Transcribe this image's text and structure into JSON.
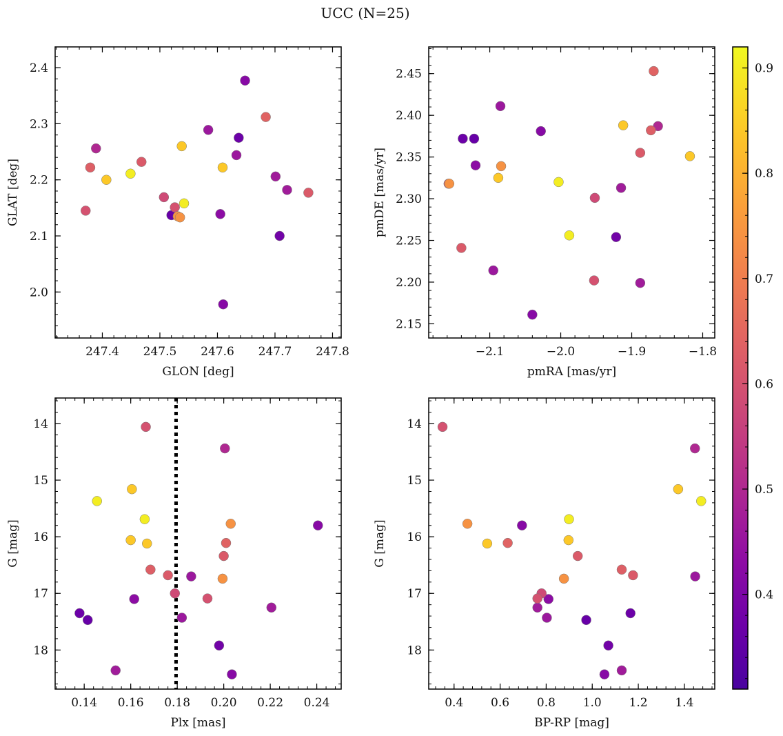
{
  "title": "UCC (N=25)",
  "chart_data": {
    "type": "scatter",
    "colorbar": {
      "colormap": "plasma",
      "range": [
        0.31,
        0.92
      ],
      "ticks": [
        "0.4",
        "0.5",
        "0.6",
        "0.7",
        "0.8",
        "0.9"
      ],
      "tick_values": [
        0.4,
        0.5,
        0.6,
        0.7,
        0.8,
        0.9
      ]
    },
    "stars": [
      {
        "glon": 247.371,
        "glat": 2.145,
        "pmra": -2.158,
        "pmde": 2.318,
        "plx": 0.1665,
        "g": 14.06,
        "bprp": 0.35,
        "prob": 0.6
      },
      {
        "glon": 247.379,
        "glat": 2.222,
        "pmra": -1.873,
        "pmde": 2.382,
        "plx": 0.1685,
        "g": 16.58,
        "bprp": 1.128,
        "prob": 0.63
      },
      {
        "glon": 247.389,
        "glat": 2.256,
        "pmra": -1.863,
        "pmde": 2.387,
        "plx": 0.2005,
        "g": 14.44,
        "bprp": 1.446,
        "prob": 0.5
      },
      {
        "glon": 247.407,
        "glat": 2.2,
        "pmra": -2.088,
        "pmde": 2.325,
        "plx": 0.1605,
        "g": 15.16,
        "bprp": 1.373,
        "prob": 0.84
      },
      {
        "glon": 247.449,
        "glat": 2.211,
        "pmra": -2.003,
        "pmde": 2.32,
        "plx": 0.1455,
        "g": 15.37,
        "bprp": 1.473,
        "prob": 0.9
      },
      {
        "glon": 247.468,
        "glat": 2.232,
        "pmra": -1.888,
        "pmde": 2.355,
        "plx": 0.176,
        "g": 16.68,
        "bprp": 1.177,
        "prob": 0.62
      },
      {
        "glon": 247.507,
        "glat": 2.169,
        "pmra": -1.952,
        "pmde": 2.301,
        "plx": 0.179,
        "g": 17.0,
        "bprp": 0.78,
        "prob": 0.58
      },
      {
        "glon": 247.52,
        "glat": 2.137,
        "pmra": -2.122,
        "pmde": 2.372,
        "plx": 0.1415,
        "g": 17.47,
        "bprp": 0.974,
        "prob": 0.36
      },
      {
        "glon": 247.526,
        "glat": 2.151,
        "pmra": -1.953,
        "pmde": 2.202,
        "plx": 0.193,
        "g": 17.09,
        "bprp": 0.762,
        "prob": 0.6
      },
      {
        "glon": 247.531,
        "glat": 2.135,
        "pmra": -2.084,
        "pmde": 2.339,
        "plx": 0.1995,
        "g": 16.74,
        "bprp": 0.877,
        "prob": 0.74
      },
      {
        "glon": 247.535,
        "glat": 2.133,
        "pmra": -2.157,
        "pmde": 2.318,
        "plx": 0.203,
        "g": 15.77,
        "bprp": 0.458,
        "prob": 0.74
      },
      {
        "glon": 247.538,
        "glat": 2.26,
        "pmra": -1.818,
        "pmde": 2.351,
        "plx": 0.167,
        "g": 16.12,
        "bprp": 0.544,
        "prob": 0.84
      },
      {
        "glon": 247.542,
        "glat": 2.158,
        "pmra": -1.988,
        "pmde": 2.256,
        "plx": 0.166,
        "g": 15.69,
        "bprp": 0.899,
        "prob": 0.9
      },
      {
        "glon": 247.584,
        "glat": 2.289,
        "pmra": -2.085,
        "pmde": 2.411,
        "plx": 0.186,
        "g": 16.7,
        "bprp": 1.447,
        "prob": 0.46
      },
      {
        "glon": 247.605,
        "glat": 2.139,
        "pmra": -2.12,
        "pmde": 2.34,
        "plx": 0.1615,
        "g": 17.1,
        "bprp": 0.81,
        "prob": 0.43
      },
      {
        "glon": 247.609,
        "glat": 2.222,
        "pmra": -1.912,
        "pmde": 2.388,
        "plx": 0.16,
        "g": 16.06,
        "bprp": 0.897,
        "prob": 0.84
      },
      {
        "glon": 247.61,
        "glat": 1.978,
        "pmra": -2.04,
        "pmde": 2.161,
        "plx": 0.2035,
        "g": 18.43,
        "bprp": 1.053,
        "prob": 0.42
      },
      {
        "glon": 247.633,
        "glat": 2.244,
        "pmra": -2.095,
        "pmde": 2.214,
        "plx": 0.182,
        "g": 17.43,
        "bprp": 0.803,
        "prob": 0.46
      },
      {
        "glon": 247.637,
        "glat": 2.275,
        "pmra": -2.138,
        "pmde": 2.372,
        "plx": 0.138,
        "g": 17.35,
        "bprp": 1.166,
        "prob": 0.37
      },
      {
        "glon": 247.648,
        "glat": 2.377,
        "pmra": -2.028,
        "pmde": 2.381,
        "plx": 0.2405,
        "g": 15.8,
        "bprp": 0.695,
        "prob": 0.42
      },
      {
        "glon": 247.684,
        "glat": 2.312,
        "pmra": -1.869,
        "pmde": 2.453,
        "plx": 0.201,
        "g": 16.11,
        "bprp": 0.633,
        "prob": 0.64
      },
      {
        "glon": 247.701,
        "glat": 2.206,
        "pmra": -1.915,
        "pmde": 2.313,
        "plx": 0.2205,
        "g": 17.25,
        "bprp": 0.762,
        "prob": 0.47
      },
      {
        "glon": 247.708,
        "glat": 2.1,
        "pmra": -1.922,
        "pmde": 2.254,
        "plx": 0.198,
        "g": 17.92,
        "bprp": 1.07,
        "prob": 0.38
      },
      {
        "glon": 247.721,
        "glat": 2.182,
        "pmra": -1.888,
        "pmde": 2.199,
        "plx": 0.1535,
        "g": 18.36,
        "bprp": 1.128,
        "prob": 0.47
      },
      {
        "glon": 247.758,
        "glat": 2.177,
        "pmra": -2.14,
        "pmde": 2.241,
        "plx": 0.2,
        "g": 16.34,
        "bprp": 0.937,
        "prob": 0.62
      }
    ],
    "panels": [
      {
        "id": "glon-glat",
        "x_key": "glon",
        "y_key": "glat",
        "xlabel": "GLON [deg]",
        "ylabel": "GLAT [deg]",
        "xlim": [
          247.318,
          247.815
        ],
        "ylim": [
          1.918,
          2.437
        ],
        "y_inverted": false,
        "xticks": [
          247.4,
          247.5,
          247.6,
          247.7,
          247.8
        ],
        "xtick_labels": [
          "247.4",
          "247.5",
          "247.6",
          "247.7",
          "247.8"
        ],
        "yticks": [
          2.0,
          2.1,
          2.2,
          2.3,
          2.4
        ],
        "ytick_labels": [
          "2.0",
          "2.1",
          "2.2",
          "2.3",
          "2.4"
        ]
      },
      {
        "id": "pmra-pmde",
        "x_key": "pmra",
        "y_key": "pmde",
        "xlabel": "pmRA [mas/yr]",
        "ylabel": "pmDE [mas/yr]",
        "xlim": [
          -2.186,
          -1.783
        ],
        "ylim": [
          2.133,
          2.482
        ],
        "y_inverted": false,
        "xticks": [
          -2.1,
          -2.0,
          -1.9,
          -1.8
        ],
        "xtick_labels": [
          "−2.1",
          "−2.0",
          "−1.9",
          "−1.8"
        ],
        "yticks": [
          2.15,
          2.2,
          2.25,
          2.3,
          2.35,
          2.4,
          2.45
        ],
        "ytick_labels": [
          "2.15",
          "2.20",
          "2.25",
          "2.30",
          "2.35",
          "2.40",
          "2.45"
        ]
      },
      {
        "id": "plx-g",
        "x_key": "plx",
        "y_key": "g",
        "xlabel": "Plx [mas]",
        "ylabel": "G [mag]",
        "xlim": [
          0.1275,
          0.2505
        ],
        "ylim": [
          13.55,
          18.69
        ],
        "y_inverted": true,
        "xticks": [
          0.14,
          0.16,
          0.18,
          0.2,
          0.22,
          0.24
        ],
        "xtick_labels": [
          "0.14",
          "0.16",
          "0.18",
          "0.20",
          "0.22",
          "0.24"
        ],
        "yticks": [
          14,
          15,
          16,
          17,
          18
        ],
        "ytick_labels": [
          "14",
          "15",
          "16",
          "17",
          "18"
        ],
        "vline": 0.1795
      },
      {
        "id": "bprp-g",
        "x_key": "bprp",
        "y_key": "g",
        "xlabel": "BP-RP [mag]",
        "ylabel": "G [mag]",
        "xlim": [
          0.29,
          1.532
        ],
        "ylim": [
          13.55,
          18.69
        ],
        "y_inverted": true,
        "xticks": [
          0.4,
          0.6,
          0.8,
          1.0,
          1.2,
          1.4
        ],
        "xtick_labels": [
          "0.4",
          "0.6",
          "0.8",
          "1.0",
          "1.2",
          "1.4"
        ],
        "yticks": [
          14,
          15,
          16,
          17,
          18
        ],
        "ytick_labels": [
          "14",
          "15",
          "16",
          "17",
          "18"
        ]
      }
    ]
  }
}
